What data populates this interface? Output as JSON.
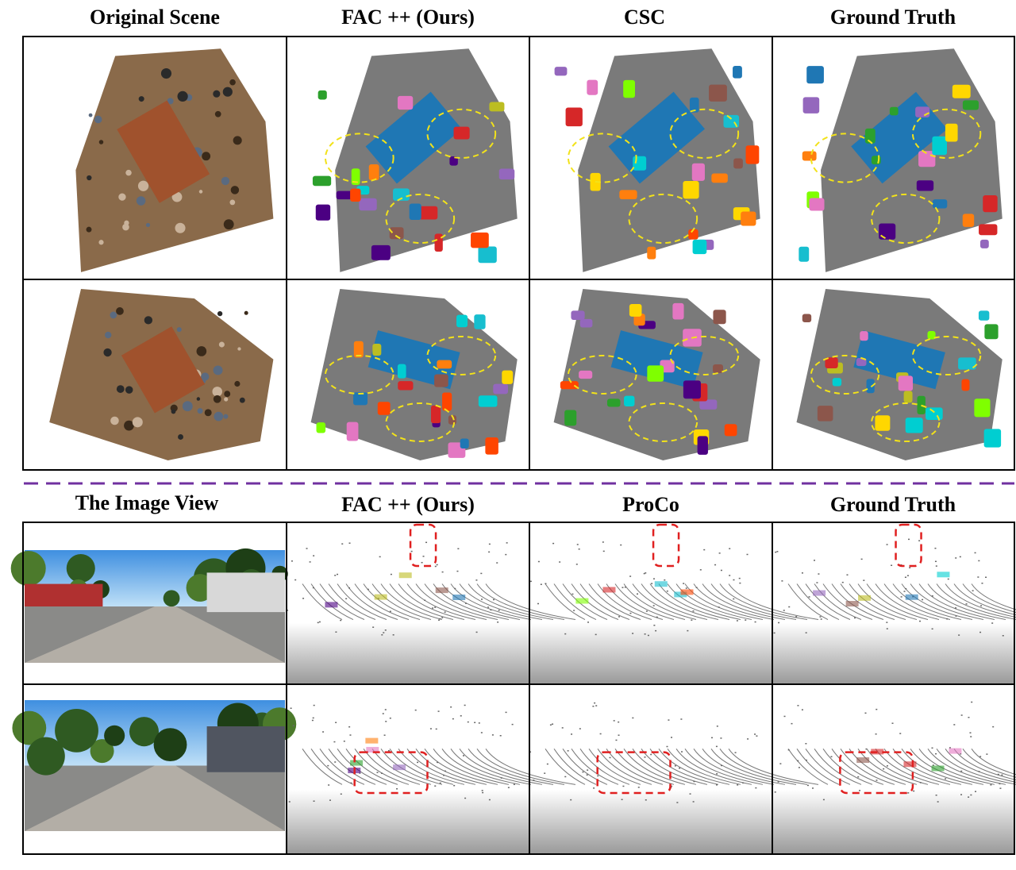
{
  "top_headers": [
    "Original Scene",
    "FAC ++ (Ours)",
    "CSC",
    "Ground Truth"
  ],
  "bottom_headers": [
    "The Image View",
    "FAC ++ (Ours)",
    "ProCo",
    "Ground Truth"
  ]
}
